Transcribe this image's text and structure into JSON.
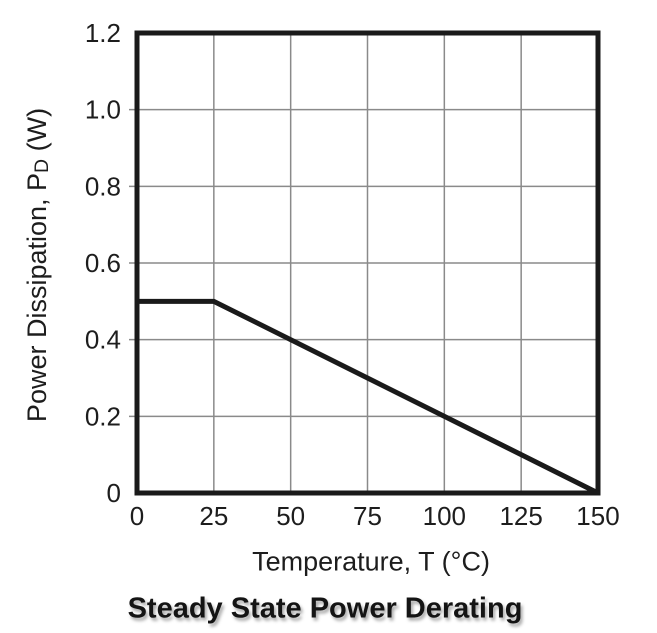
{
  "chart_data": {
    "type": "line",
    "title": "Steady State Power Derating",
    "xlabel": "Temperature, T (°C)",
    "ylabel": "Power Dissipation, PD (W)",
    "ylabel_parts": {
      "prefix": "Power Dissipation, P",
      "sub": "D",
      "suffix": " (W)"
    },
    "xlim": [
      0,
      150
    ],
    "ylim": [
      0,
      1.2
    ],
    "x_ticks": [
      0,
      25,
      50,
      75,
      100,
      125,
      150
    ],
    "x_tick_labels": [
      "0",
      "25",
      "50",
      "75",
      "100",
      "125",
      "150"
    ],
    "y_ticks": [
      0,
      0.2,
      0.4,
      0.6,
      0.8,
      1.0,
      1.2
    ],
    "y_tick_labels": [
      "0",
      "0.2",
      "0.4",
      "0.6",
      "0.8",
      "1.0",
      "1.2"
    ],
    "grid": true,
    "legend": false,
    "series": [
      {
        "name": "steady-state-power-derating-line",
        "points": [
          [
            0,
            0.5
          ],
          [
            25,
            0.5
          ],
          [
            150,
            0
          ]
        ],
        "color": "#1a1a1a",
        "width": 5
      }
    ],
    "colors": {
      "frame": "#1a1a1a",
      "grid": "#8a8a8a",
      "text": "#1d1d1d",
      "background": "#ffffff"
    }
  }
}
